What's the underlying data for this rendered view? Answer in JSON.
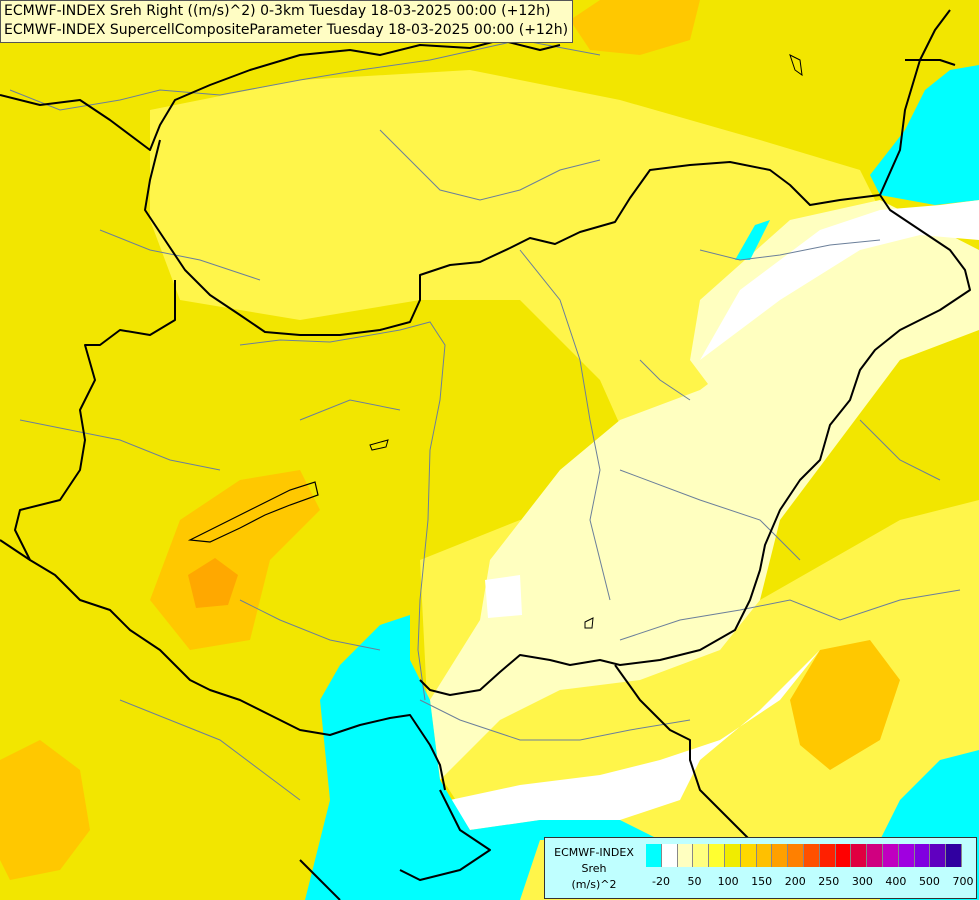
{
  "title": {
    "line1": "ECMWF-INDEX Sreh Right ((m/s)^2) 0-3km Tuesday 18-03-2025 00:00 (+12h)",
    "line2": "ECMWF-INDEX SupercellCompositeParameter Tuesday 18-03-2025 00:00 (+12h)"
  },
  "legend": {
    "model": "ECMWF-INDEX",
    "variable": "Sreh",
    "unit": "(m/s)^2",
    "swatch_colors": [
      "#00ffff",
      "#ffffff",
      "#ffffc0",
      "#ffff80",
      "#ffff30",
      "#f0ec00",
      "#ffd800",
      "#ffc000",
      "#ffa000",
      "#ff8000",
      "#ff5000",
      "#ff2000",
      "#ff0000",
      "#e00040",
      "#d00080",
      "#c000c0",
      "#a000e0",
      "#8000e0",
      "#6000c0",
      "#3000a0"
    ],
    "ticks": [
      "-20",
      "50",
      "100",
      "150",
      "200",
      "250",
      "300",
      "400",
      "500",
      "700"
    ]
  },
  "colors": {
    "base": "#f2e600",
    "pale": "#ffffc0",
    "orange": "#ffc000",
    "cyan": "#00ffff",
    "border": "#000000",
    "river": "#6b7f9a"
  }
}
